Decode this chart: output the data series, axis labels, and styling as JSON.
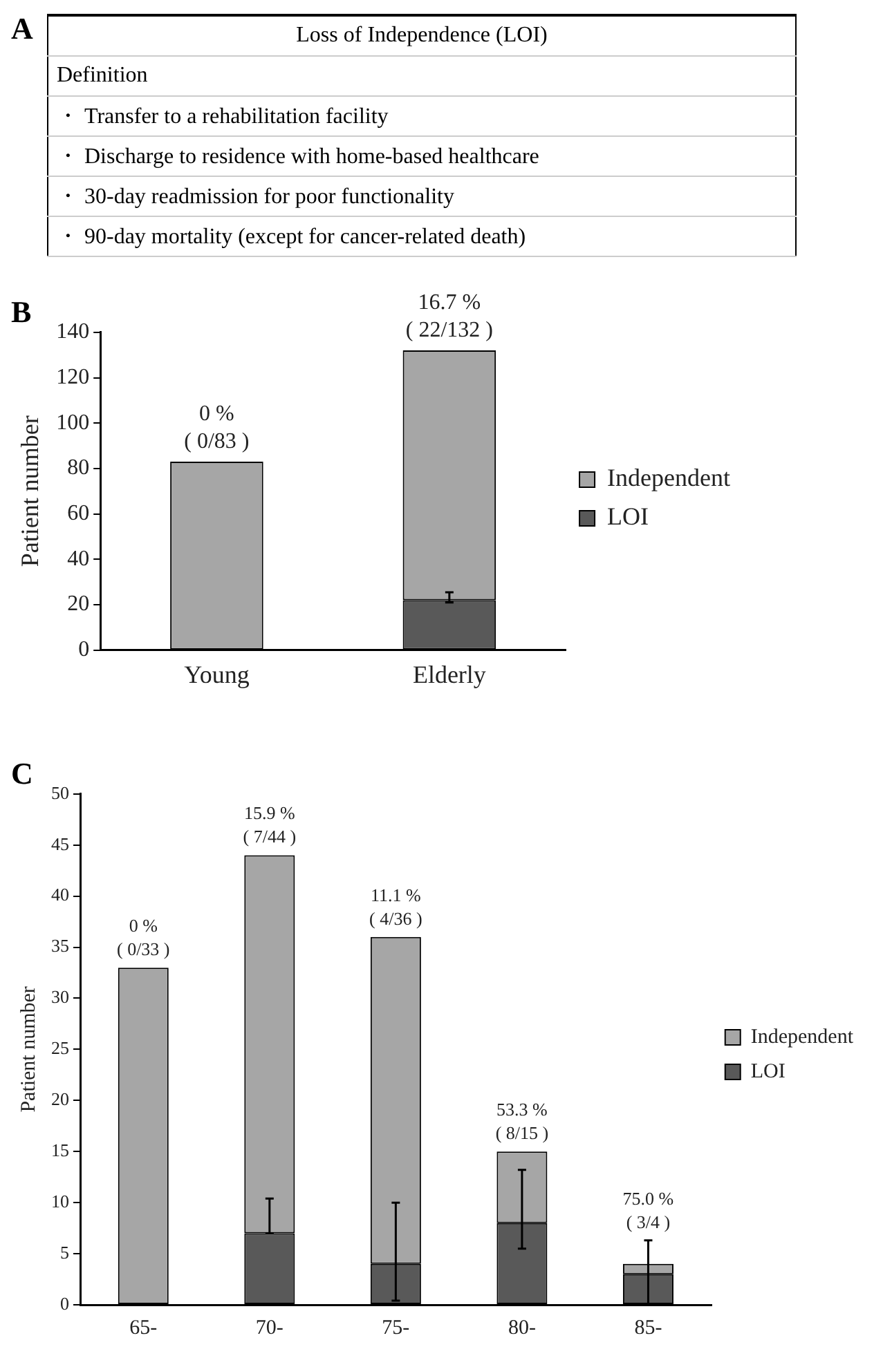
{
  "chart_data": [
    {
      "type": "other",
      "title": "A",
      "annotations": [
        "Loss of Independence (LOI)",
        "Definition",
        "・ Transfer to a rehabilitation facility",
        "・ Discharge to residence with home-based healthcare",
        "・ 30-day readmission for poor functionality",
        "・ 90-day mortality (except for cancer-related death)"
      ]
    },
    {
      "type": "bar",
      "title": "B",
      "ylabel": "Patient number",
      "categories": [
        "Young",
        "Elderly"
      ],
      "stacked": true,
      "legend": "right",
      "grid": false,
      "ylim": [
        0,
        140
      ],
      "yticks": [
        0,
        20,
        40,
        60,
        80,
        100,
        120,
        140
      ],
      "series": [
        {
          "name": "LOI",
          "color": "#595959",
          "values": [
            0,
            22
          ],
          "errors": [
            null,
            [
              21,
              25.5
            ]
          ]
        },
        {
          "name": "Independent",
          "color": "#a6a6a6",
          "values": [
            83,
            110
          ]
        }
      ],
      "annotations": [
        {
          "text": "0 %",
          "x": "Young",
          "y": 83
        },
        {
          "text": "( 0/83 )",
          "x": "Young",
          "y": 83
        },
        {
          "text": "16.7 %",
          "x": "Elderly",
          "y": 132
        },
        {
          "text": "( 22/132 )",
          "x": "Elderly",
          "y": 132
        }
      ]
    },
    {
      "type": "bar",
      "title": "C",
      "ylabel": "Patient number",
      "categories": [
        "65-",
        "70-",
        "75-",
        "80-",
        "85-"
      ],
      "stacked": true,
      "legend": "right",
      "grid": false,
      "ylim": [
        0,
        50
      ],
      "yticks": [
        0,
        5,
        10,
        15,
        20,
        25,
        30,
        35,
        40,
        45,
        50
      ],
      "series": [
        {
          "name": "LOI",
          "color": "#595959",
          "values": [
            0,
            7,
            4,
            8,
            3
          ],
          "errors": [
            null,
            [
              7,
              10.4
            ],
            [
              0.4,
              10
            ],
            [
              5.5,
              13.2
            ],
            [
              0,
              6.3
            ]
          ]
        },
        {
          "name": "Independent",
          "color": "#a6a6a6",
          "values": [
            33,
            37,
            32,
            7,
            1
          ]
        }
      ],
      "annotations": [
        {
          "text": "0 %",
          "x": "65-",
          "y": 33
        },
        {
          "text": "( 0/33 )",
          "x": "65-",
          "y": 33
        },
        {
          "text": "15.9 %",
          "x": "70-",
          "y": 44
        },
        {
          "text": "( 7/44 )",
          "x": "70-",
          "y": 44
        },
        {
          "text": "11.1 %",
          "x": "75-",
          "y": 36
        },
        {
          "text": "( 4/36 )",
          "x": "75-",
          "y": 36
        },
        {
          "text": "53.3 %",
          "x": "80-",
          "y": 15
        },
        {
          "text": "( 8/15 )",
          "x": "80-",
          "y": 15
        },
        {
          "text": "75.0 %",
          "x": "85-",
          "y": 6.3
        },
        {
          "text": "( 3/4 )",
          "x": "85-",
          "y": 6.3
        }
      ]
    }
  ]
}
